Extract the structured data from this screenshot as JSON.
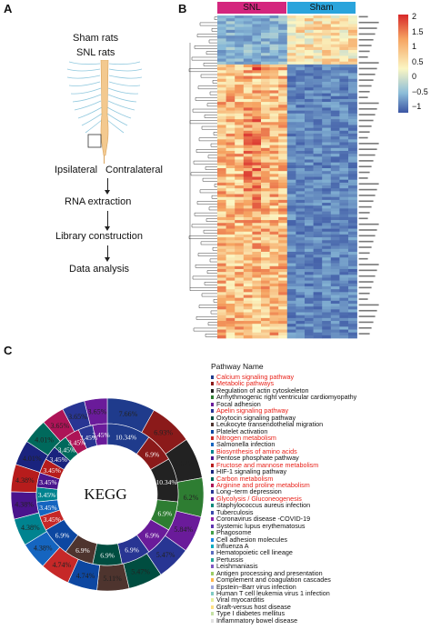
{
  "panels": {
    "a": "A",
    "b": "B",
    "c": "C"
  },
  "panel_a": {
    "label_sham": "Sham rats",
    "label_snl": "SNL rats",
    "label_ipsilateral": "Ipsilateral",
    "label_contralateral": "Contralateral",
    "step1": "RNA extraction",
    "step2": "Library construction",
    "step3": "Data analysis"
  },
  "panel_b": {
    "group_snl": "SNL",
    "group_sham": "Sham",
    "legend_ticks": [
      "2",
      "1.5",
      "1",
      "0.5",
      "0",
      "−0.5",
      "−1"
    ],
    "colors": {
      "low": "#3b55a3",
      "mid": "#fbf6c3",
      "high": "#d7282a",
      "snl": "#d4267e",
      "sham": "#2aa4dc"
    }
  },
  "panel_c": {
    "center_label": "KEGG",
    "legend_title": "Pathway Name",
    "pathways": [
      {
        "name": "Calcium signaling pathway",
        "highlight": true,
        "color": "#1f3b8c"
      },
      {
        "name": "Metabolic pathways",
        "highlight": true,
        "color": "#8b1a1a"
      },
      {
        "name": "Regulation of actin cytoskeleton",
        "highlight": false,
        "color": "#222222"
      },
      {
        "name": "Arrhythmogenic right ventricular cardiomyopathy",
        "highlight": false,
        "color": "#2e7d32"
      },
      {
        "name": "Focal adhesion",
        "highlight": false,
        "color": "#6a1b9a"
      },
      {
        "name": "Apelin signaling pathway",
        "highlight": true,
        "color": "#283593"
      },
      {
        "name": "Oxytocin signaling pathway",
        "highlight": false,
        "color": "#004d40"
      },
      {
        "name": "Leukocyte transendothelial migration",
        "highlight": false,
        "color": "#4e342e"
      },
      {
        "name": "Platelet activation",
        "highlight": false,
        "color": "#0d47a1"
      },
      {
        "name": "Nitrogen metabolism",
        "highlight": true,
        "color": "#c62828"
      },
      {
        "name": "Salmonella infection",
        "highlight": false,
        "color": "#1565c0"
      },
      {
        "name": "Biosynthesis of amino acids",
        "highlight": true,
        "color": "#00838f"
      },
      {
        "name": "Pentose phosphate pathway",
        "highlight": false,
        "color": "#4a148c"
      },
      {
        "name": "Fructose and mannose metabolism",
        "highlight": true,
        "color": "#b71c1c"
      },
      {
        "name": "HIF-1 signaling pathway",
        "highlight": false,
        "color": "#1a237e"
      },
      {
        "name": "Carbon metabolism",
        "highlight": true,
        "color": "#00695c"
      },
      {
        "name": "Arginine and proline metabolism",
        "highlight": true,
        "color": "#ad1457"
      },
      {
        "name": "Long−term depression",
        "highlight": false,
        "color": "#283593"
      },
      {
        "name": "Glycolysis / Gluconeogenesis",
        "highlight": true,
        "color": "#6a1b9a"
      },
      {
        "name": "Staphylococcus aureus infection",
        "highlight": false,
        "color": "#00897b"
      },
      {
        "name": "Tuberculosis",
        "highlight": false,
        "color": "#3949ab"
      },
      {
        "name": "Coronavirus disease -COVID-19",
        "highlight": false,
        "color": "#8e24aa"
      },
      {
        "name": "Systemic lupus erythematosus",
        "highlight": false,
        "color": "#5e35b1"
      },
      {
        "name": "Phagosome",
        "highlight": false,
        "color": "#43a047"
      },
      {
        "name": "Cell adhesion molecules",
        "highlight": false,
        "color": "#1e88e5"
      },
      {
        "name": "Influenza A",
        "highlight": false,
        "color": "#00acc1"
      },
      {
        "name": "Hematopoietic cell lineage",
        "highlight": false,
        "color": "#5c6bc0"
      },
      {
        "name": "Pertussis",
        "highlight": false,
        "color": "#26a69a"
      },
      {
        "name": "Leishmaniasis",
        "highlight": false,
        "color": "#7e57c2"
      },
      {
        "name": "Antigen processing and presentation",
        "highlight": false,
        "color": "#9ccc65"
      },
      {
        "name": "Complement and coagulation cascades",
        "highlight": false,
        "color": "#ffb74d"
      },
      {
        "name": "Epstein−Barr virus infection",
        "highlight": false,
        "color": "#9fa8da"
      },
      {
        "name": "Human T cell leukemia virus 1 infection",
        "highlight": false,
        "color": "#80cbc4"
      },
      {
        "name": "Viral myocarditis",
        "highlight": false,
        "color": "#e6ee9c"
      },
      {
        "name": "Graft-versus host disease",
        "highlight": false,
        "color": "#ffe082"
      },
      {
        "name": "Type I diabetes mellitus",
        "highlight": false,
        "color": "#c5e1a5"
      },
      {
        "name": "Inflammatory bowel disease",
        "highlight": false,
        "color": "#e0e0e0"
      }
    ]
  },
  "chart_data": [
    {
      "type": "heatmap",
      "columns_groups": [
        "SNL",
        "Sham"
      ],
      "color_scale": [
        -1,
        2
      ],
      "legend_ticks": [
        "2",
        "1.5",
        "1",
        "0.5",
        "0",
        "−0.5",
        "−1"
      ]
    },
    {
      "type": "pie",
      "center_label": "KEGG",
      "outer_ring": [
        "7.66%",
        "6.93%",
        "6.57%",
        "6.2%",
        "5.84%",
        "5.47%",
        "5.47%",
        "5.11%",
        "4.74%",
        "4.74%",
        "4.38%",
        "4.38%",
        "4.38%",
        "4.38%",
        "4.01%",
        "4.01%",
        "3.65%",
        "3.65%",
        "3.65%"
      ],
      "inner_ring": [
        "10.34%",
        "6.9%",
        "10.34%",
        "6.9%",
        "6.9%",
        "6.9%",
        "6.9%",
        "6.9%",
        "6.9%",
        "3.45%",
        "3.45%",
        "3.45%",
        "3.45%",
        "3.45%",
        "3.45%",
        "3.45%",
        "3.45%",
        "3.45%",
        "3.45%"
      ]
    }
  ]
}
